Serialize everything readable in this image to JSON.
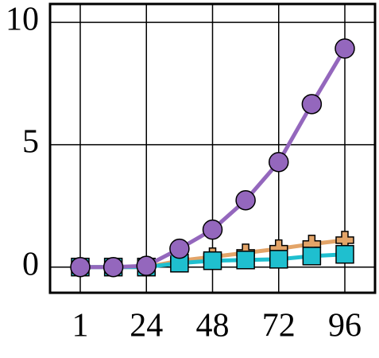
{
  "chart_data": {
    "type": "line",
    "categories": [
      "1",
      null,
      "24",
      null,
      "48",
      null,
      "72",
      null,
      "96"
    ],
    "series": [
      {
        "color": "#e3a468",
        "marker": "plus",
        "values": [
          0,
          0,
          0,
          0.26,
          0.42,
          0.58,
          0.75,
          0.94,
          1.1
        ]
      },
      {
        "color": "#1fbfcf",
        "marker": "square",
        "values": [
          0,
          0,
          0,
          0.16,
          0.26,
          0.29,
          0.32,
          0.45,
          0.52
        ]
      },
      {
        "color": "#9467bd",
        "marker": "circle",
        "values": [
          0,
          0,
          0.05,
          0.75,
          1.53,
          2.73,
          4.29,
          6.66,
          8.93
        ]
      }
    ],
    "ylim": [
      -1.05,
      10.75
    ],
    "yticks": [
      0,
      5,
      10
    ],
    "grid": true
  }
}
